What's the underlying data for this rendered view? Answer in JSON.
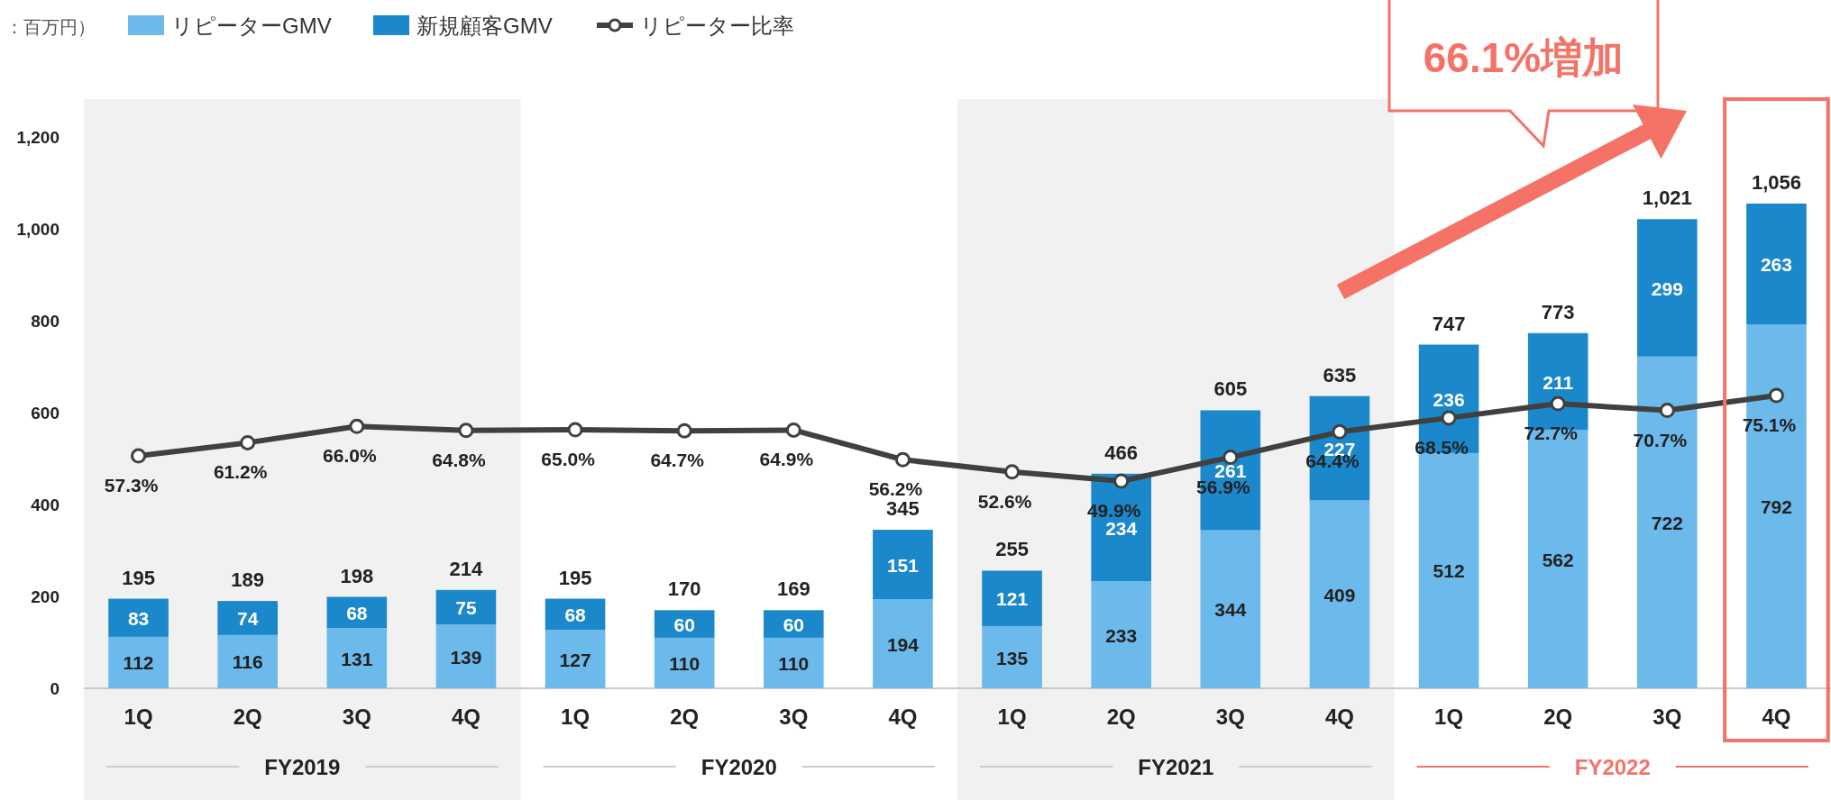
{
  "chart_data": {
    "type": "bar",
    "stacked": true,
    "categories": [
      "1Q",
      "2Q",
      "3Q",
      "4Q",
      "1Q",
      "2Q",
      "3Q",
      "4Q",
      "1Q",
      "2Q",
      "3Q",
      "4Q",
      "1Q",
      "2Q",
      "3Q",
      "4Q"
    ],
    "series": [
      {
        "name": "リピーターGMV",
        "color": "#6cb9eb",
        "values": [
          112,
          116,
          131,
          139,
          127,
          110,
          110,
          194,
          135,
          233,
          344,
          409,
          512,
          562,
          722,
          792
        ]
      },
      {
        "name": "新規顧客GMV",
        "color": "#1b88cb",
        "values": [
          83,
          74,
          68,
          75,
          68,
          60,
          60,
          151,
          121,
          234,
          261,
          227,
          236,
          211,
          299,
          263
        ]
      },
      {
        "name": "リピーター比率",
        "type": "line",
        "axis": "y2",
        "color": "#404040",
        "values": [
          57.3,
          61.2,
          66.0,
          64.8,
          65.0,
          64.7,
          64.9,
          56.2,
          52.6,
          49.9,
          56.9,
          64.4,
          68.5,
          72.7,
          70.7,
          75.1
        ],
        "value_labels": [
          "57.3%",
          "61.2%",
          "66.0%",
          "64.8%",
          "65.0%",
          "64.7%",
          "64.9%",
          "56.2%",
          "52.6%",
          "49.9%",
          "56.9%",
          "64.4%",
          "68.5%",
          "72.7%",
          "70.7%",
          "75.1%"
        ]
      }
    ],
    "totals": [
      "195",
      "189",
      "198",
      "214",
      "195",
      "170",
      "169",
      "345",
      "255",
      "466",
      "605",
      "635",
      "747",
      "773",
      "1,021",
      "1,056"
    ],
    "data_labels": true,
    "ylim": [
      0,
      1200
    ],
    "yticks": [
      0,
      200,
      400,
      600,
      800,
      {
        "value": 1000,
        "label": "1,000"
      },
      {
        "value": 1200,
        "label": "1,200"
      }
    ],
    "marker": "circle",
    "line_style": "solid",
    "legend": "top left",
    "annotations": [
      "：百万円）",
      "66.1%増加",
      "FY2019",
      "FY2020",
      "FY2021",
      "FY2022"
    ]
  }
}
